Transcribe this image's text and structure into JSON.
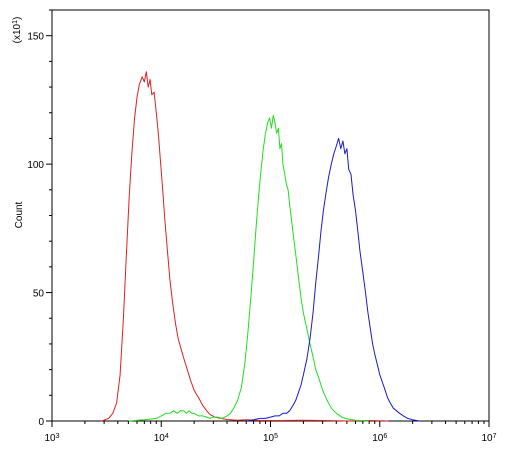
{
  "chart_data": {
    "type": "line",
    "title": "",
    "xlabel": "",
    "ylabel": "Count",
    "y_multiplier": {
      "base": "(x10",
      "exp": "1",
      "close": ")"
    },
    "x_scale": "log",
    "xlim": [
      1000,
      10000000
    ],
    "ylim": [
      0,
      160
    ],
    "x_ticks": [
      {
        "value": 1000,
        "base": "10",
        "exp": "3"
      },
      {
        "value": 10000,
        "base": "10",
        "exp": "4"
      },
      {
        "value": 100000,
        "base": "10",
        "exp": "5"
      },
      {
        "value": 1000000,
        "base": "10",
        "exp": "6"
      },
      {
        "value": 10000000,
        "base": "10",
        "exp": "7"
      }
    ],
    "y_ticks": [
      {
        "value": 0,
        "label": "0"
      },
      {
        "value": 50,
        "label": "50"
      },
      {
        "value": 100,
        "label": "100"
      },
      {
        "value": 150,
        "label": "150"
      }
    ],
    "grid": false,
    "legend": "none",
    "series": [
      {
        "color": "#e02020",
        "points": [
          [
            2800,
            0
          ],
          [
            3000,
            0.3
          ],
          [
            3300,
            1
          ],
          [
            3600,
            3
          ],
          [
            3900,
            7
          ],
          [
            4200,
            18
          ],
          [
            4500,
            40
          ],
          [
            4800,
            65
          ],
          [
            5100,
            88
          ],
          [
            5400,
            105
          ],
          [
            5700,
            118
          ],
          [
            6000,
            126
          ],
          [
            6300,
            131
          ],
          [
            6700,
            134
          ],
          [
            7000,
            132
          ],
          [
            7300,
            136
          ],
          [
            7600,
            130
          ],
          [
            7900,
            133
          ],
          [
            8200,
            127
          ],
          [
            8600,
            128
          ],
          [
            9000,
            120
          ],
          [
            9400,
            112
          ],
          [
            9800,
            102
          ],
          [
            10300,
            90
          ],
          [
            10800,
            78
          ],
          [
            11400,
            66
          ],
          [
            12000,
            55
          ],
          [
            12700,
            46
          ],
          [
            13500,
            38
          ],
          [
            14300,
            32
          ],
          [
            15200,
            28
          ],
          [
            16200,
            24
          ],
          [
            17300,
            20
          ],
          [
            18500,
            16
          ],
          [
            20000,
            12
          ],
          [
            22000,
            9
          ],
          [
            24000,
            6
          ],
          [
            26000,
            4
          ],
          [
            28000,
            2.5
          ],
          [
            31000,
            1.5
          ],
          [
            35000,
            1
          ],
          [
            40000,
            0.6
          ],
          [
            50000,
            0.3
          ],
          [
            60000,
            0.5
          ],
          [
            80000,
            0.2
          ],
          [
            120000,
            0.2
          ],
          [
            200000,
            0.3
          ],
          [
            300000,
            0.2
          ],
          [
            500000,
            0
          ],
          [
            800000,
            0.2
          ],
          [
            1200000,
            0
          ]
        ]
      },
      {
        "color": "#22dd22",
        "points": [
          [
            5000,
            0
          ],
          [
            7000,
            0.5
          ],
          [
            9000,
            1
          ],
          [
            10000,
            2
          ],
          [
            11000,
            3
          ],
          [
            12000,
            3
          ],
          [
            13000,
            4
          ],
          [
            14000,
            3
          ],
          [
            15000,
            4
          ],
          [
            16000,
            4
          ],
          [
            17000,
            3
          ],
          [
            18000,
            4
          ],
          [
            19000,
            3
          ],
          [
            20000,
            3
          ],
          [
            22000,
            2
          ],
          [
            24000,
            2
          ],
          [
            26000,
            1.5
          ],
          [
            28000,
            1
          ],
          [
            30000,
            1.5
          ],
          [
            33000,
            1.5
          ],
          [
            36000,
            1
          ],
          [
            40000,
            2
          ],
          [
            43000,
            3
          ],
          [
            46000,
            5
          ],
          [
            50000,
            8
          ],
          [
            54000,
            13
          ],
          [
            58000,
            22
          ],
          [
            62000,
            34
          ],
          [
            66000,
            48
          ],
          [
            70000,
            62
          ],
          [
            74000,
            76
          ],
          [
            78000,
            88
          ],
          [
            82000,
            98
          ],
          [
            86000,
            106
          ],
          [
            90000,
            112
          ],
          [
            94000,
            116
          ],
          [
            98000,
            118
          ],
          [
            102000,
            114
          ],
          [
            106000,
            119
          ],
          [
            110000,
            116
          ],
          [
            114000,
            112
          ],
          [
            118000,
            114
          ],
          [
            122000,
            106
          ],
          [
            126000,
            108
          ],
          [
            130000,
            100
          ],
          [
            135000,
            96
          ],
          [
            140000,
            92
          ],
          [
            145000,
            90
          ],
          [
            150000,
            84
          ],
          [
            160000,
            74
          ],
          [
            170000,
            65
          ],
          [
            180000,
            56
          ],
          [
            190000,
            48
          ],
          [
            200000,
            42
          ],
          [
            215000,
            36
          ],
          [
            230000,
            30
          ],
          [
            245000,
            25
          ],
          [
            260000,
            20
          ],
          [
            280000,
            16
          ],
          [
            300000,
            12
          ],
          [
            330000,
            8
          ],
          [
            360000,
            5
          ],
          [
            400000,
            3
          ],
          [
            450000,
            1.5
          ],
          [
            500000,
            0.8
          ],
          [
            600000,
            0.3
          ],
          [
            800000,
            0
          ]
        ]
      },
      {
        "color": "#1a1acc",
        "points": [
          [
            60000,
            0
          ],
          [
            70000,
            0.5
          ],
          [
            80000,
            1
          ],
          [
            90000,
            1
          ],
          [
            100000,
            1.5
          ],
          [
            110000,
            2
          ],
          [
            120000,
            2
          ],
          [
            130000,
            3
          ],
          [
            140000,
            3
          ],
          [
            150000,
            4
          ],
          [
            160000,
            6
          ],
          [
            170000,
            8
          ],
          [
            180000,
            11
          ],
          [
            190000,
            14
          ],
          [
            200000,
            18
          ],
          [
            215000,
            24
          ],
          [
            230000,
            32
          ],
          [
            245000,
            42
          ],
          [
            260000,
            54
          ],
          [
            275000,
            64
          ],
          [
            290000,
            74
          ],
          [
            305000,
            82
          ],
          [
            320000,
            88
          ],
          [
            340000,
            95
          ],
          [
            360000,
            100
          ],
          [
            380000,
            104
          ],
          [
            400000,
            107
          ],
          [
            420000,
            110
          ],
          [
            440000,
            106
          ],
          [
            460000,
            109
          ],
          [
            480000,
            104
          ],
          [
            500000,
            106
          ],
          [
            520000,
            98
          ],
          [
            545000,
            96
          ],
          [
            570000,
            88
          ],
          [
            600000,
            82
          ],
          [
            630000,
            74
          ],
          [
            660000,
            66
          ],
          [
            700000,
            58
          ],
          [
            740000,
            50
          ],
          [
            780000,
            42
          ],
          [
            820000,
            36
          ],
          [
            860000,
            30
          ],
          [
            900000,
            26
          ],
          [
            950000,
            22
          ],
          [
            1000000,
            18
          ],
          [
            1060000,
            15
          ],
          [
            1120000,
            12
          ],
          [
            1180000,
            9
          ],
          [
            1250000,
            7
          ],
          [
            1330000,
            5
          ],
          [
            1420000,
            4
          ],
          [
            1520000,
            3
          ],
          [
            1650000,
            2
          ],
          [
            1800000,
            1
          ],
          [
            2000000,
            0.5
          ],
          [
            2300000,
            0
          ]
        ]
      }
    ]
  }
}
